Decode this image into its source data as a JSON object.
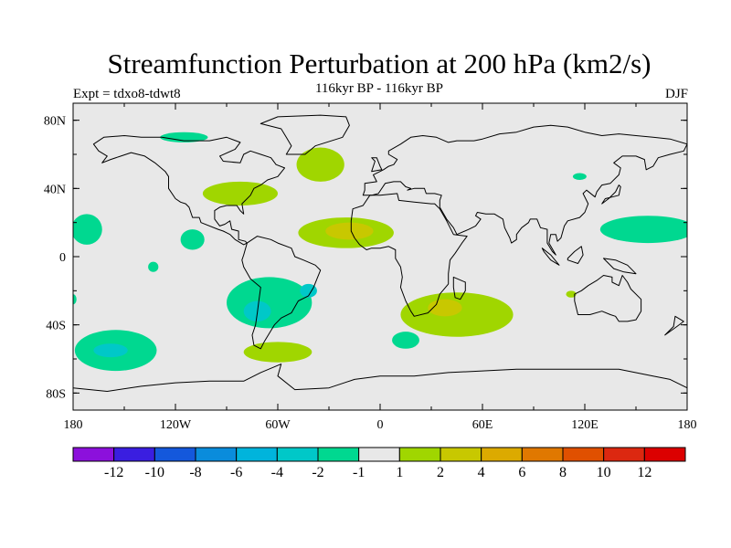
{
  "title": "Streamfunction Perturbation at 200 hPa (km2/s)",
  "subtitle": "116kyr BP - 116kyr BP",
  "left_label": "Expt = tdxo8-tdwt8",
  "right_label": "DJF",
  "colors": {
    "land_background": "#e8e8e8",
    "coastline": "#000000",
    "positive_1": "#a0d600",
    "positive_2": "#c8c800",
    "negative_1": "#00d890",
    "negative_2": "#00c8c8",
    "negative_3": "#00b4dc"
  },
  "chart_data": {
    "type": "heatmap",
    "projection": "cylindrical-equidistant",
    "lon_range": [
      -180,
      180
    ],
    "lat_range": [
      -90,
      90
    ],
    "x_ticks": [
      {
        "value": -180,
        "label": "180"
      },
      {
        "value": -120,
        "label": "120W"
      },
      {
        "value": -60,
        "label": "60W"
      },
      {
        "value": 0,
        "label": "0"
      },
      {
        "value": 60,
        "label": "60E"
      },
      {
        "value": 120,
        "label": "120E"
      },
      {
        "value": 180,
        "label": "180"
      }
    ],
    "y_ticks": [
      {
        "value": 80,
        "label": "80N"
      },
      {
        "value": 40,
        "label": "40N"
      },
      {
        "value": 0,
        "label": "0"
      },
      {
        "value": -40,
        "label": "40S"
      },
      {
        "value": -80,
        "label": "80S"
      }
    ],
    "colorbar": {
      "labels": [
        "-12",
        "-10",
        "-8",
        "-6",
        "-4",
        "-2",
        "-1",
        "1",
        "2",
        "4",
        "6",
        "8",
        "10",
        "12"
      ],
      "colors": [
        "#8c10dc",
        "#3a1ee0",
        "#1458dc",
        "#0a8cdc",
        "#00b4dc",
        "#00c8c8",
        "#00d890",
        "#e8e8e8",
        "#a0d600",
        "#c8c800",
        "#dcaa00",
        "#e07800",
        "#e05000",
        "#dc2810",
        "#dc0000"
      ]
    },
    "contours": [
      {
        "level": 1,
        "center": [
          -35,
          54
        ],
        "radii": [
          14,
          10
        ]
      },
      {
        "level": 1,
        "center": [
          -82,
          37
        ],
        "radii": [
          22,
          7
        ]
      },
      {
        "level": 1,
        "center": [
          -20,
          14
        ],
        "radii": [
          28,
          9
        ]
      },
      {
        "level": 2,
        "center": [
          -18,
          15
        ],
        "radii": [
          14,
          5
        ]
      },
      {
        "level": 1,
        "center": [
          45,
          -34
        ],
        "radii": [
          33,
          13
        ]
      },
      {
        "level": 2,
        "center": [
          38,
          -30
        ],
        "radii": [
          10,
          5
        ]
      },
      {
        "level": 1,
        "center": [
          -60,
          -56
        ],
        "radii": [
          20,
          6
        ]
      },
      {
        "level": -1,
        "center": [
          -155,
          -55
        ],
        "radii": [
          24,
          12
        ]
      },
      {
        "level": -2,
        "center": [
          -158,
          -55
        ],
        "radii": [
          10,
          4
        ]
      },
      {
        "level": -1,
        "center": [
          -65,
          -27
        ],
        "radii": [
          25,
          15
        ]
      },
      {
        "level": -2,
        "center": [
          -72,
          -32
        ],
        "radii": [
          8,
          6
        ]
      },
      {
        "level": -2,
        "center": [
          -42,
          -20
        ],
        "radii": [
          5,
          4
        ]
      },
      {
        "level": -1,
        "center": [
          157,
          16
        ],
        "radii": [
          28,
          8
        ]
      },
      {
        "level": -1,
        "center": [
          -172,
          16
        ],
        "radii": [
          9,
          9
        ]
      },
      {
        "level": -1,
        "center": [
          -110,
          10
        ],
        "radii": [
          7,
          6
        ]
      },
      {
        "level": -1,
        "center": [
          -115,
          70
        ],
        "radii": [
          14,
          3
        ]
      },
      {
        "level": -1,
        "center": [
          15,
          -49
        ],
        "radii": [
          8,
          5
        ]
      },
      {
        "level": -1,
        "center": [
          117,
          47
        ],
        "radii": [
          4,
          2
        ]
      },
      {
        "level": -1,
        "center": [
          -133,
          -6
        ],
        "radii": [
          3,
          3
        ]
      },
      {
        "level": -1,
        "center": [
          -180,
          -25
        ],
        "radii": [
          2,
          3
        ]
      },
      {
        "level": 1,
        "center": [
          112,
          -22
        ],
        "radii": [
          3,
          2
        ]
      }
    ]
  }
}
